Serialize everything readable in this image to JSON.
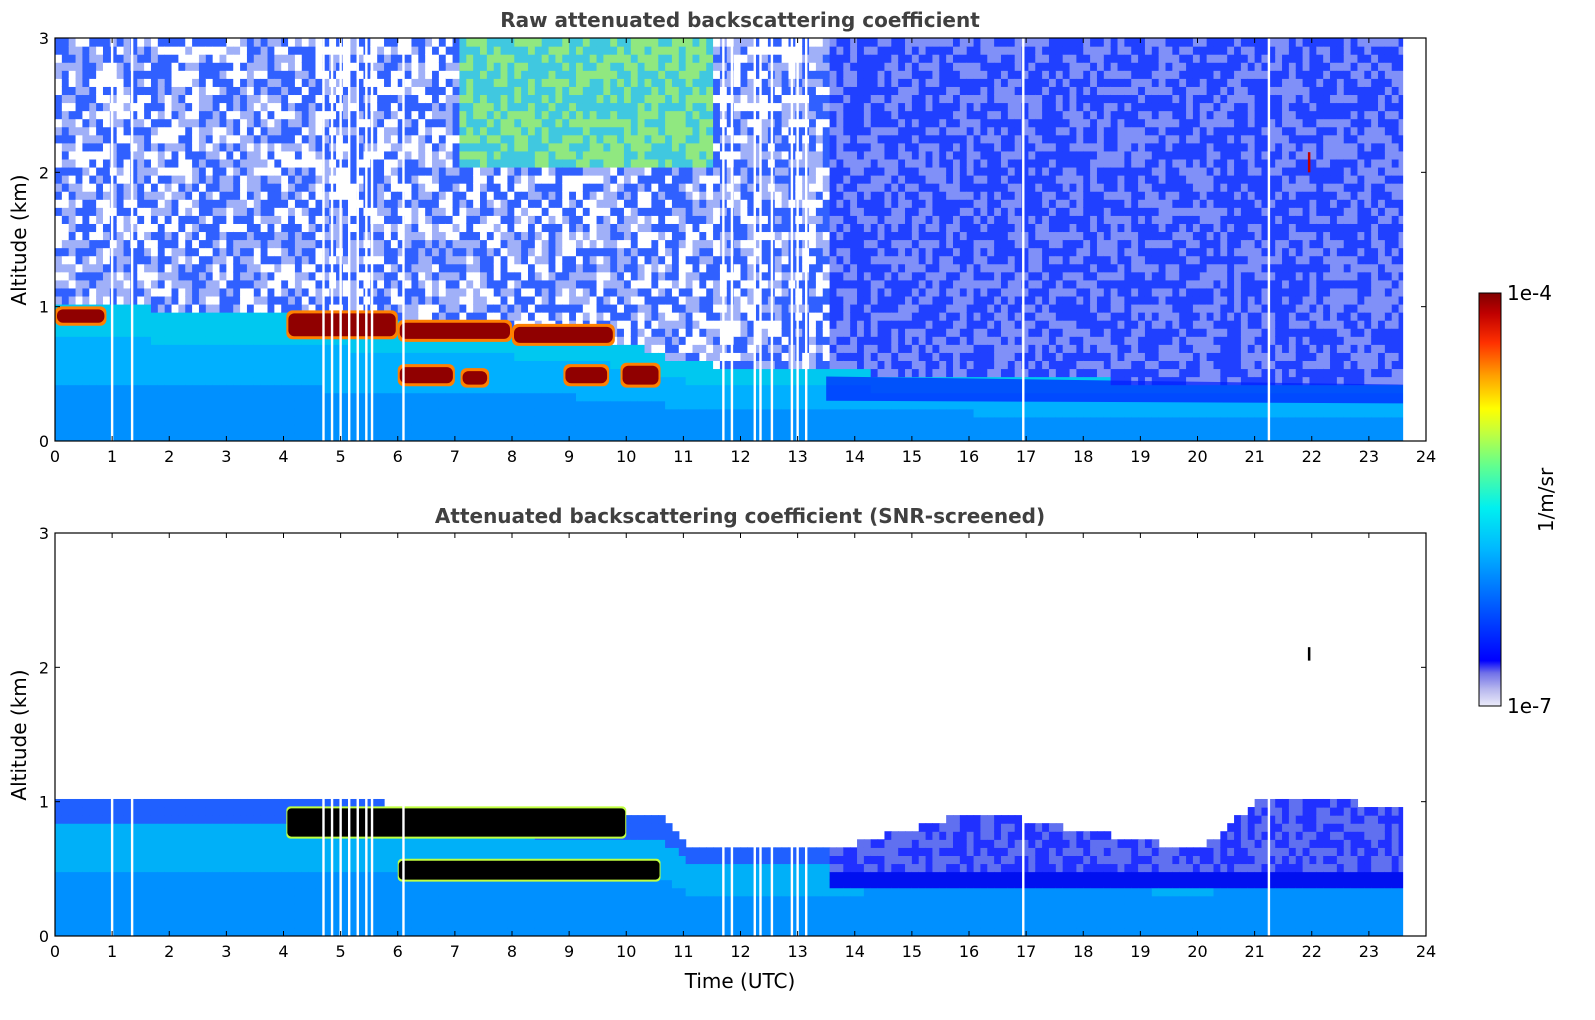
{
  "chart_data": [
    {
      "type": "heatmap",
      "title": "Raw attenuated backscattering coefficient",
      "xlabel": "",
      "ylabel": "Altitude (km)",
      "xlim": [
        0,
        24
      ],
      "ylim": [
        0,
        3
      ],
      "xticks": [
        "0",
        "1",
        "2",
        "3",
        "4",
        "5",
        "6",
        "7",
        "8",
        "9",
        "10",
        "11",
        "12",
        "13",
        "14",
        "15",
        "16",
        "17",
        "18",
        "19",
        "20",
        "21",
        "22",
        "23",
        "24"
      ],
      "yticks": [
        "0",
        "1",
        "2",
        "3"
      ],
      "data_end_time": 23.6,
      "features": {
        "boundary_layer_top_km": [
          [
            0,
            1.0
          ],
          [
            2,
            0.95
          ],
          [
            4,
            0.92
          ],
          [
            6,
            0.85
          ],
          [
            8,
            0.8
          ],
          [
            10,
            0.7
          ],
          [
            11,
            0.55
          ],
          [
            13,
            0.5
          ],
          [
            16,
            0.45
          ],
          [
            20,
            0.4
          ],
          [
            23.6,
            0.4
          ]
        ],
        "cloud_layers": [
          {
            "t_start": 0.0,
            "t_end": 0.9,
            "alt_bottom_km": 0.88,
            "alt_top_km": 0.98
          },
          {
            "t_start": 4.05,
            "t_end": 6.0,
            "alt_bottom_km": 0.78,
            "alt_top_km": 0.95
          },
          {
            "t_start": 6.0,
            "t_end": 8.0,
            "alt_bottom_km": 0.76,
            "alt_top_km": 0.88
          },
          {
            "t_start": 8.0,
            "t_end": 9.8,
            "alt_bottom_km": 0.73,
            "alt_top_km": 0.85
          },
          {
            "t_start": 6.0,
            "t_end": 7.0,
            "alt_bottom_km": 0.43,
            "alt_top_km": 0.55
          },
          {
            "t_start": 7.1,
            "t_end": 7.6,
            "alt_bottom_km": 0.42,
            "alt_top_km": 0.52
          },
          {
            "t_start": 8.9,
            "t_end": 9.7,
            "alt_bottom_km": 0.43,
            "alt_top_km": 0.55
          },
          {
            "t_start": 9.9,
            "t_end": 10.6,
            "alt_bottom_km": 0.42,
            "alt_top_km": 0.56
          }
        ],
        "data_gaps_utc": [
          1.0,
          1.35,
          4.7,
          4.85,
          5.0,
          5.15,
          5.3,
          5.45,
          5.55,
          6.1,
          11.7,
          11.85,
          12.25,
          12.35,
          12.55,
          12.9,
          13.0,
          13.15,
          16.95,
          21.25
        ]
      }
    },
    {
      "type": "heatmap",
      "title": "Attenuated backscattering coefficient (SNR-screened)",
      "xlabel": "Time (UTC)",
      "ylabel": "Altitude (km)",
      "xlim": [
        0,
        24
      ],
      "ylim": [
        0,
        3
      ],
      "xticks": [
        "0",
        "1",
        "2",
        "3",
        "4",
        "5",
        "6",
        "7",
        "8",
        "9",
        "10",
        "11",
        "12",
        "13",
        "14",
        "15",
        "16",
        "17",
        "18",
        "19",
        "20",
        "21",
        "22",
        "23",
        "24"
      ],
      "yticks": [
        "0",
        "1",
        "2",
        "3"
      ],
      "data_end_time": 23.6,
      "features": {
        "screened_top_km": [
          [
            0,
            1.02
          ],
          [
            4,
            1.0
          ],
          [
            10.6,
            0.85
          ],
          [
            11,
            0.66
          ],
          [
            13.5,
            0.6
          ],
          [
            16,
            0.9
          ],
          [
            20,
            0.6
          ],
          [
            21,
            0.98
          ],
          [
            23.6,
            0.95
          ]
        ],
        "cloud_layers": [
          {
            "t_start": 4.05,
            "t_end": 10.0,
            "alt_bottom_km": 0.74,
            "alt_top_km": 0.95
          },
          {
            "t_start": 6.0,
            "t_end": 10.6,
            "alt_bottom_km": 0.42,
            "alt_top_km": 0.56
          }
        ],
        "isolated_returns": [
          {
            "t": 21.95,
            "alt_km": 2.05
          }
        ]
      }
    }
  ],
  "colorbar": {
    "label": "1/m/sr",
    "min_label": "1e-7",
    "max_label": "1e-4",
    "scale": "log",
    "colormap": [
      "#e8e8f8",
      "#c8c8f0",
      "#9898e8",
      "#0000ff",
      "#0050ff",
      "#00a0ff",
      "#00d8ff",
      "#40ffc0",
      "#a0ff60",
      "#ffff00",
      "#ffb000",
      "#ff4000",
      "#d00000",
      "#800000"
    ]
  }
}
